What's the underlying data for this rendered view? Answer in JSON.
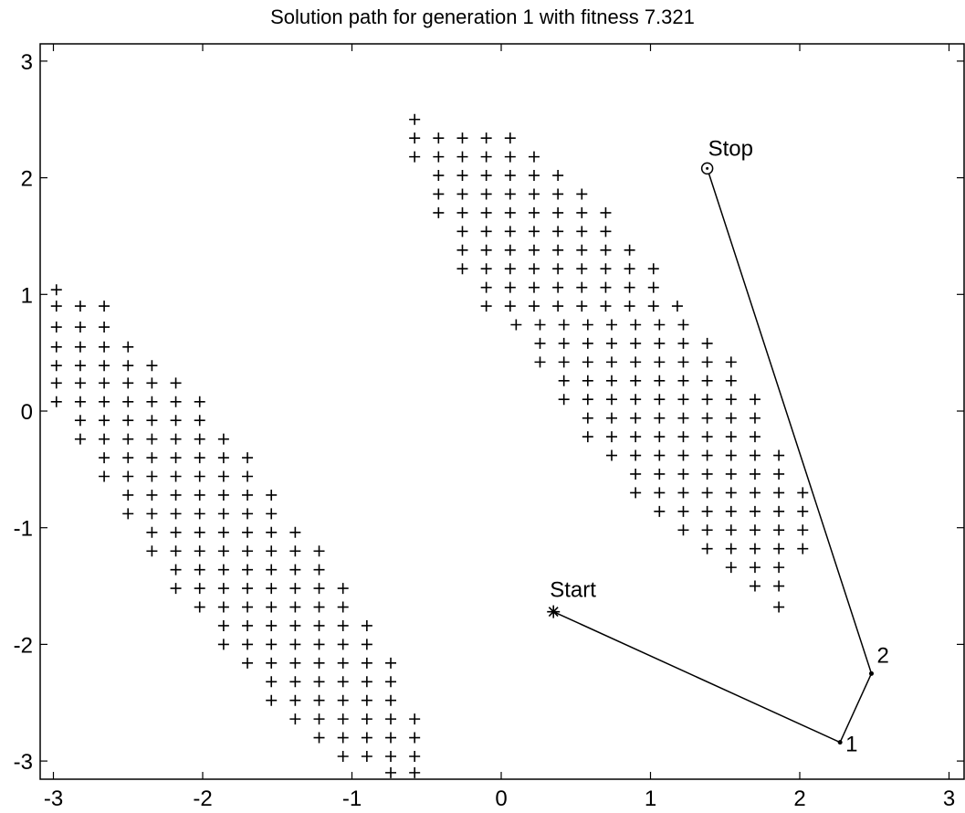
{
  "chart_data": {
    "type": "scatter",
    "title": "Solution path for generation  1 with fitness  7.321",
    "xlabel": "",
    "ylabel": "",
    "xlim": [
      -3.15,
      3.2
    ],
    "ylim": [
      -3.12,
      3.15
    ],
    "x_ticks": [
      "-3",
      "-2",
      "-1",
      "0",
      "1",
      "2",
      "3"
    ],
    "y_ticks": [
      "3",
      "2",
      "1",
      "0",
      "-1",
      "-2",
      "-3"
    ],
    "grid": false,
    "obstacles": [
      {
        "name": "",
        "marker": "+",
        "grid_step": [
          0.16,
          0.136
        ],
        "rows": [
          {
            "y": 1.04,
            "x_start": -2.98,
            "x_end": -2.98
          },
          {
            "y": 0.9,
            "x_start": -2.98,
            "x_end": -2.66
          },
          {
            "y": 0.72,
            "x_start": -2.98,
            "x_end": -2.66
          },
          {
            "y": 0.55,
            "x_start": -2.98,
            "x_end": -2.5
          },
          {
            "y": 0.39,
            "x_start": -2.98,
            "x_end": -2.34
          },
          {
            "y": 0.24,
            "x_start": -2.98,
            "x_end": -2.18
          },
          {
            "y": 0.08,
            "x_start": -2.98,
            "x_end": -2.02
          },
          {
            "y": -0.08,
            "x_start": -2.82,
            "x_end": -2.02
          },
          {
            "y": -0.24,
            "x_start": -2.82,
            "x_end": -1.86
          },
          {
            "y": -0.4,
            "x_start": -2.66,
            "x_end": -1.7
          },
          {
            "y": -0.56,
            "x_start": -2.66,
            "x_end": -1.7
          },
          {
            "y": -0.72,
            "x_start": -2.5,
            "x_end": -1.54
          },
          {
            "y": -0.88,
            "x_start": -2.5,
            "x_end": -1.54
          },
          {
            "y": -1.04,
            "x_start": -2.34,
            "x_end": -1.38
          },
          {
            "y": -1.2,
            "x_start": -2.34,
            "x_end": -1.22
          },
          {
            "y": -1.36,
            "x_start": -2.18,
            "x_end": -1.22
          },
          {
            "y": -1.52,
            "x_start": -2.18,
            "x_end": -1.06
          },
          {
            "y": -1.68,
            "x_start": -2.02,
            "x_end": -1.06
          },
          {
            "y": -1.84,
            "x_start": -1.86,
            "x_end": -0.9
          },
          {
            "y": -2.0,
            "x_start": -1.86,
            "x_end": -0.9
          },
          {
            "y": -2.16,
            "x_start": -1.7,
            "x_end": -0.74
          },
          {
            "y": -2.32,
            "x_start": -1.54,
            "x_end": -0.74
          },
          {
            "y": -2.48,
            "x_start": -1.54,
            "x_end": -0.74
          },
          {
            "y": -2.64,
            "x_start": -1.38,
            "x_end": -0.58
          },
          {
            "y": -2.8,
            "x_start": -1.22,
            "x_end": -0.58
          },
          {
            "y": -2.96,
            "x_start": -1.06,
            "x_end": -0.58
          },
          {
            "y": -3.1,
            "x_start": -0.74,
            "x_end": -0.58
          }
        ]
      },
      {
        "name": "",
        "marker": "+",
        "rows": [
          {
            "y": 2.5,
            "x_start": -0.58,
            "x_end": -0.58
          },
          {
            "y": 2.34,
            "x_start": -0.58,
            "x_end": 0.1
          },
          {
            "y": 2.18,
            "x_start": -0.58,
            "x_end": 0.26
          },
          {
            "y": 2.02,
            "x_start": -0.42,
            "x_end": 0.42
          },
          {
            "y": 1.86,
            "x_start": -0.42,
            "x_end": 0.58
          },
          {
            "y": 1.7,
            "x_start": -0.42,
            "x_end": 0.74
          },
          {
            "y": 1.54,
            "x_start": -0.26,
            "x_end": 0.74
          },
          {
            "y": 1.38,
            "x_start": -0.26,
            "x_end": 0.9
          },
          {
            "y": 1.22,
            "x_start": -0.26,
            "x_end": 1.06
          },
          {
            "y": 1.06,
            "x_start": -0.1,
            "x_end": 1.06
          },
          {
            "y": 0.9,
            "x_start": -0.1,
            "x_end": 1.22
          },
          {
            "y": 0.74,
            "x_start": 0.1,
            "x_end": 1.22
          },
          {
            "y": 0.58,
            "x_start": 0.26,
            "x_end": 1.38
          },
          {
            "y": 0.42,
            "x_start": 0.26,
            "x_end": 1.54
          },
          {
            "y": 0.26,
            "x_start": 0.42,
            "x_end": 1.54
          },
          {
            "y": 0.1,
            "x_start": 0.42,
            "x_end": 1.7
          },
          {
            "y": -0.06,
            "x_start": 0.58,
            "x_end": 1.7
          },
          {
            "y": -0.22,
            "x_start": 0.58,
            "x_end": 1.7
          },
          {
            "y": -0.38,
            "x_start": 0.74,
            "x_end": 1.86
          },
          {
            "y": -0.54,
            "x_start": 0.9,
            "x_end": 1.86
          },
          {
            "y": -0.7,
            "x_start": 0.9,
            "x_end": 2.02
          },
          {
            "y": -0.86,
            "x_start": 1.06,
            "x_end": 2.02
          },
          {
            "y": -1.02,
            "x_start": 1.22,
            "x_end": 2.02
          },
          {
            "y": -1.18,
            "x_start": 1.38,
            "x_end": 2.02
          },
          {
            "y": -1.34,
            "x_start": 1.54,
            "x_end": 1.86
          },
          {
            "y": -1.5,
            "x_start": 1.7,
            "x_end": 1.86
          },
          {
            "y": -1.68,
            "x_start": 1.86,
            "x_end": 1.86
          }
        ]
      }
    ],
    "path": {
      "name": "",
      "points": [
        {
          "x": 0.35,
          "y": -1.72,
          "label": "Start",
          "marker": "asterisk"
        },
        {
          "x": 2.27,
          "y": -2.84,
          "label": "1",
          "marker": "dot"
        },
        {
          "x": 2.48,
          "y": -2.25,
          "label": "2",
          "marker": "dot"
        },
        {
          "x": 1.38,
          "y": 2.08,
          "label": "Stop",
          "marker": "circle"
        }
      ]
    }
  }
}
